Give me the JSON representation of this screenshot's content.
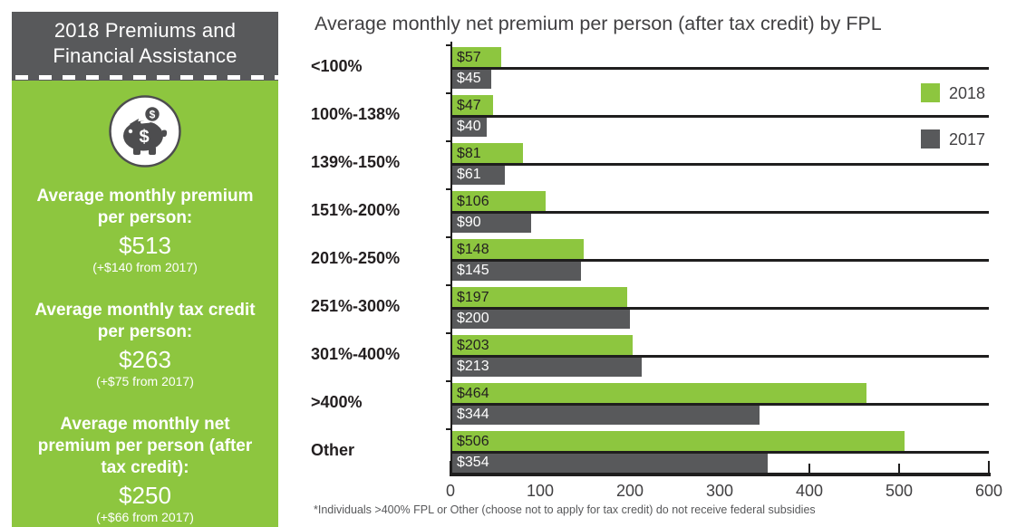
{
  "sidebar": {
    "title": "2018 Premiums and Financial Assistance",
    "icon": "piggy-bank-icon",
    "panel_color": "#8DC63F",
    "header_color": "#58595B",
    "stats": [
      {
        "label": "Average monthly premium per person:",
        "value": "$513",
        "change": "(+$140 from 2017)"
      },
      {
        "label": "Average monthly tax credit per person:",
        "value": "$263",
        "change": "(+$75 from 2017)"
      },
      {
        "label": "Average monthly net premium per person (after tax credit):",
        "value": "$250",
        "change": "(+$66 from 2017)"
      }
    ]
  },
  "chart_data": {
    "type": "bar",
    "orientation": "horizontal",
    "title": "Average monthly net premium per person (after tax credit) by FPL",
    "categories": [
      "<100%",
      "100%-138%",
      "139%-150%",
      "151%-200%",
      "201%-250%",
      "251%-300%",
      "301%-400%",
      ">400%",
      "Other"
    ],
    "series": [
      {
        "name": "2018",
        "color": "#8DC63F",
        "label_color": "#231F20",
        "values": [
          57,
          47,
          81,
          106,
          148,
          197,
          203,
          464,
          506
        ]
      },
      {
        "name": "2017",
        "color": "#58595B",
        "label_color": "#FFFFFF",
        "values": [
          45,
          40,
          61,
          90,
          145,
          200,
          213,
          344,
          354
        ]
      }
    ],
    "value_prefix": "$",
    "xlim": [
      0,
      600
    ],
    "x_ticks": [
      0,
      100,
      200,
      300,
      400,
      500,
      600
    ],
    "grid": "category-separator-lines",
    "legend_position": "top-right",
    "footnote": "*Individuals >400% FPL or Other (choose not to apply for tax credit) do not receive federal subsidies"
  },
  "colors": {
    "accent_green": "#8DC63F",
    "dark_gray": "#58595B",
    "title_gray": "#414042",
    "near_black": "#231F20"
  }
}
